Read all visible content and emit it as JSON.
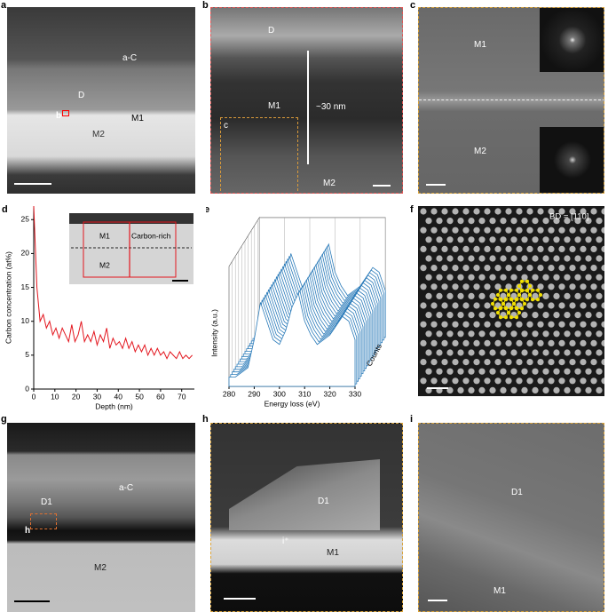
{
  "panels": [
    {
      "label": "a",
      "texts": [
        "a-C",
        "D",
        "b",
        "M1",
        "M2"
      ]
    },
    {
      "label": "b",
      "texts": [
        "D",
        "M1",
        "~30 nm",
        "c",
        "M2"
      ]
    },
    {
      "label": "c",
      "texts": [
        "M1",
        "M2"
      ]
    },
    {
      "label": "f",
      "texts": [
        "BD = [110]"
      ]
    },
    {
      "label": "g",
      "texts": [
        "D1",
        "a-C",
        "h",
        "M2"
      ]
    },
    {
      "label": "h",
      "texts": [
        "D1",
        "i⁺",
        "M1"
      ]
    },
    {
      "label": "i",
      "texts": [
        "D1",
        "M1"
      ]
    }
  ],
  "chart_data": [
    {
      "type": "line",
      "label": "d",
      "x_label": "Depth (nm)",
      "y_label": "Carbon concentration (at%)",
      "inset_texts": [
        "M1",
        "Carbon-rich",
        "M2"
      ],
      "x": [
        0,
        1.5,
        3,
        4.5,
        6,
        7.5,
        9,
        10.5,
        12,
        13.5,
        15,
        16.5,
        18,
        19.5,
        21,
        22.5,
        24,
        25.5,
        27,
        28.5,
        30,
        31.5,
        33,
        34.5,
        36,
        37.5,
        39,
        40.5,
        42,
        43.5,
        45,
        46.5,
        48,
        49.5,
        51,
        52.5,
        54,
        55.5,
        57,
        58.5,
        60,
        61.5,
        63,
        64.5,
        66,
        67.5,
        69,
        70.5,
        72,
        73.5,
        75
      ],
      "values": [
        27,
        15,
        10,
        11,
        9,
        10,
        8,
        9,
        7.5,
        9,
        8,
        7,
        9.5,
        7,
        8,
        10,
        7,
        8,
        7,
        8.5,
        6.5,
        8,
        7,
        9,
        6,
        7.5,
        6.5,
        7,
        6,
        7.5,
        6,
        7,
        5.5,
        6.5,
        5.5,
        6.5,
        5,
        6,
        5,
        6,
        5,
        5.5,
        4.5,
        5.5,
        5,
        4.5,
        5.5,
        4.5,
        5,
        4.5,
        5
      ],
      "color": "#e3161e",
      "xlim": [
        0,
        76
      ],
      "ylim": [
        0,
        27
      ],
      "xticks": [
        0,
        10,
        20,
        30,
        40,
        50,
        60,
        70
      ],
      "yticks": [
        0,
        5,
        10,
        15,
        20,
        25
      ]
    },
    {
      "type": "waterfall",
      "label": "e",
      "x_label": "Energy loss (eV)",
      "y_label": "Intensity (a.u.)",
      "z_label": "Counts",
      "x": [
        280,
        282.5,
        285,
        287.5,
        290,
        292.5,
        295,
        297.5,
        300,
        302.5,
        305,
        307.5,
        310,
        312.5,
        315,
        317.5,
        320,
        322.5,
        325,
        327.5,
        330
      ],
      "values": [
        0.1,
        0.1,
        0.15,
        0.2,
        0.5,
        0.9,
        0.7,
        0.5,
        0.45,
        0.6,
        0.85,
        1.0,
        0.7,
        0.55,
        0.45,
        0.5,
        0.55,
        0.65,
        0.75,
        0.7,
        0.5
      ],
      "color": "#2b7bb9",
      "xlim": [
        280,
        330
      ],
      "ylim": [
        0,
        1
      ],
      "xticks": [
        280,
        290,
        300,
        310,
        320,
        330
      ]
    }
  ]
}
